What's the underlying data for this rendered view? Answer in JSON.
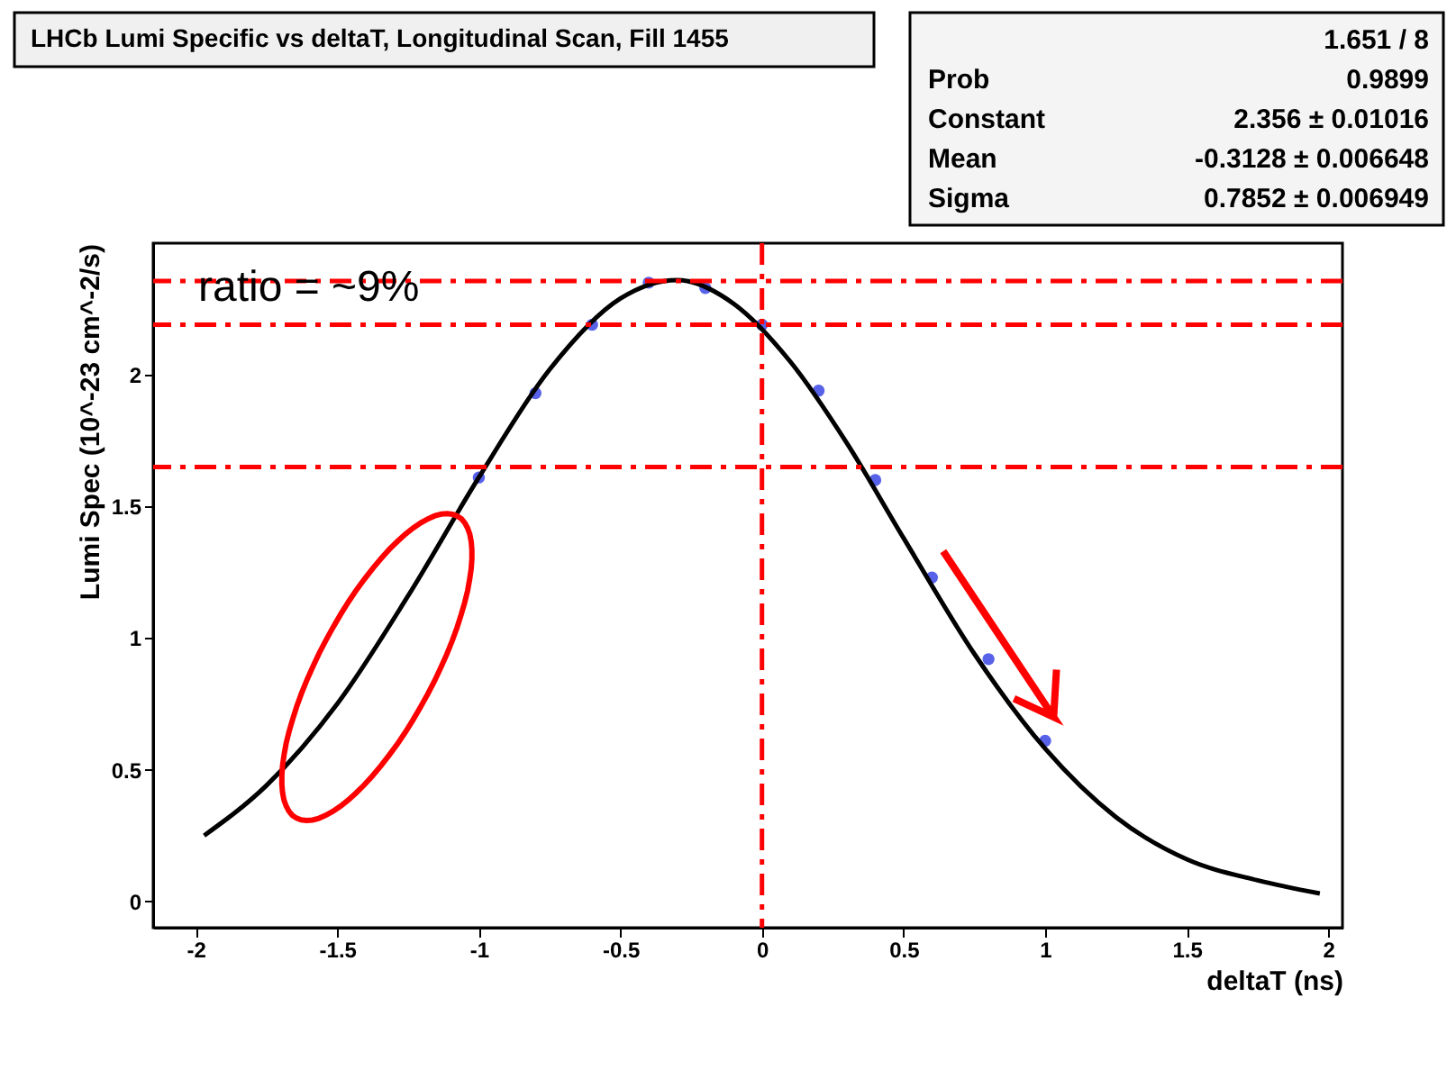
{
  "chart_data": {
    "type": "scatter",
    "title": "LHCb Lumi Specific vs deltaT, Longitudinal Scan, Fill 1455",
    "xlabel": "deltaT (ns)",
    "ylabel": "Lumi Spec (10^-23 cm^-2/s)",
    "series": [
      {
        "color": "#1020e0",
        "marker": "circle",
        "x": [
          -1.0,
          -0.8,
          -0.6,
          -0.4,
          -0.2,
          0.0,
          0.2,
          0.4,
          0.6,
          0.8,
          1.0
        ],
        "values": [
          1.61,
          1.93,
          2.19,
          2.35,
          2.33,
          2.19,
          1.94,
          1.6,
          1.23,
          0.92,
          0.61
        ]
      },
      {
        "type": "line",
        "color": "#000000",
        "marker": "none",
        "x": [
          -1.97,
          -1.75,
          -1.5,
          -1.25,
          -1.0,
          -0.75,
          -0.5,
          -0.3,
          -0.1,
          0.1,
          0.3,
          0.5,
          0.75,
          1.0,
          1.25,
          1.5,
          1.75,
          1.97
        ],
        "values": [
          0.25,
          0.44,
          0.75,
          1.16,
          1.61,
          2.02,
          2.29,
          2.36,
          2.27,
          2.05,
          1.74,
          1.38,
          0.94,
          0.58,
          0.32,
          0.16,
          0.08,
          0.03
        ]
      }
    ],
    "xlim": [
      -2.15,
      2.05
    ],
    "ylim": [
      -0.1,
      2.5
    ],
    "xticks": [
      -2,
      -1.5,
      -1,
      -0.5,
      0,
      0.5,
      1,
      1.5,
      2
    ],
    "yticks": [
      0,
      0.5,
      1,
      1.5,
      2
    ],
    "grid": false,
    "ref_lines": [
      {
        "axis": "x",
        "value": 0,
        "color": "#ff0000",
        "line_style": "dashed"
      },
      {
        "axis": "y",
        "value": 2.356,
        "color": "#ff0000",
        "line_style": "dashed"
      },
      {
        "axis": "y",
        "value": 2.19,
        "color": "#ff0000",
        "line_style": "dashed"
      },
      {
        "axis": "y",
        "value": 1.65,
        "color": "#ff0000",
        "line_style": "dashed"
      }
    ],
    "annotations": [
      "ratio = ~9%",
      "1.651 / 8",
      "Prob",
      "0.9899",
      "Constant",
      "2.356 ± 0.01016",
      "Mean",
      "-0.3128 ± 0.006648",
      "Sigma",
      "0.7852 ± 0.006949"
    ]
  }
}
